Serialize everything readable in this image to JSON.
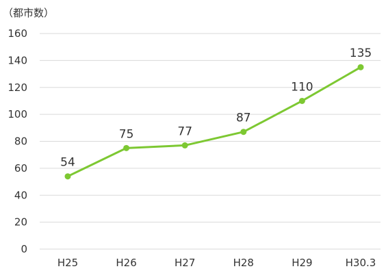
{
  "chart_data": {
    "type": "line",
    "title": "",
    "xlabel": "",
    "ylabel": "（都市数）",
    "ylim": [
      0,
      160
    ],
    "yticks": [
      0,
      20,
      40,
      60,
      80,
      100,
      120,
      140,
      160
    ],
    "categories": [
      "H25",
      "H26",
      "H27",
      "H28",
      "H29",
      "H30.3"
    ],
    "series": [
      {
        "values": [
          54,
          75,
          77,
          87,
          110,
          135
        ],
        "color": "#7dc832"
      }
    ],
    "data_labels": [
      "54",
      "75",
      "77",
      "87",
      "110",
      "135"
    ],
    "grid": true,
    "legend": "none"
  }
}
